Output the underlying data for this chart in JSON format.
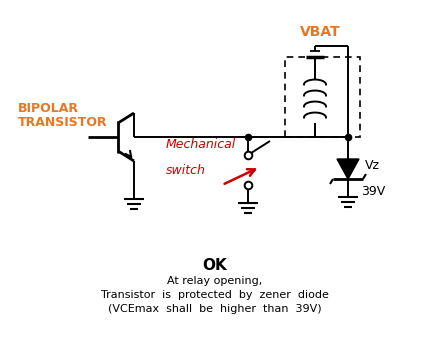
{
  "title_ok": "OK",
  "subtitle_lines": [
    "At relay opening,",
    "Transistor  is  protected  by  zener  diode",
    "(VCEmax  shall  be  higher  than  39V)"
  ],
  "vbat_label": "VBAT",
  "bipolar_label1": "BIPOLAR",
  "bipolar_label2": "TRANSISTOR",
  "mech_label1": "Mechanical",
  "mech_label2": "switch",
  "vz_label": "Vz",
  "v39_label": "39V",
  "color_orange": "#E87722",
  "color_red": "#CC0000",
  "color_black": "#000000",
  "bg_color": "#ffffff"
}
